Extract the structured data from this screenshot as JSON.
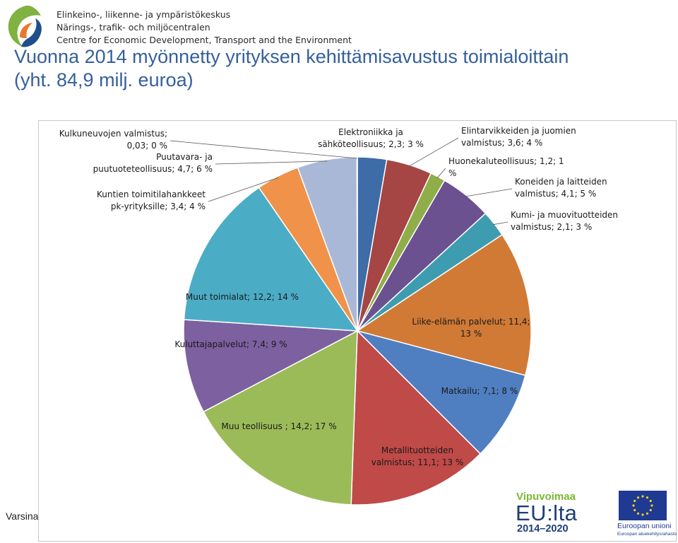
{
  "header": {
    "org_lines": [
      "Elinkeino-, liikenne- ja ympäristökeskus",
      "Närings-, trafik- och miljöcentralen",
      "Centre for Economic Development, Transport and the Environment"
    ],
    "title_line1": "Vuonna 2014 myönnetty yrityksen kehittämisavustus toimialoittain",
    "title_line2": "(yht. 84,9 milj. euroa)"
  },
  "footer": {
    "left_text": "Varsinais-Suomi",
    "vipuvoimaa": {
      "top": "Vipuvoimaa",
      "mid": "EU:lta",
      "bottom": "2014–2020"
    },
    "eu": {
      "line1": "Euroopan unioni",
      "line2": "Euroopan aluekehitysrahasto"
    }
  },
  "colors": {
    "title": "#355f9e",
    "frame": "#c8c8c8"
  },
  "chart_data": {
    "type": "pie",
    "title": "",
    "unit": "",
    "series": [
      {
        "values": [
          2.3,
          3.6,
          1.2,
          4.1,
          2.1,
          11.4,
          7.1,
          11.1,
          14.2,
          7.4,
          12.2,
          3.4,
          4.7,
          0.03
        ],
        "labels": [
          "Elektroniikka ja sähköteollisuus; 2,3; 3 %",
          "Elintarvikkeiden ja juomien valmistus; 3,6; 4 %",
          "Huonekaluteollisuus; 1,2; 1 %",
          "Koneiden ja laitteiden valmistus; 4,1; 5 %",
          "Kumi- ja muovituotteiden valmistus; 2,1; 3 %",
          "Liike-elämän palvelut; 11,4; 13 %",
          "Matkailu; 7,1; 8 %",
          "Metallituotteiden valmistus; 11,1; 13 %",
          "Muu teollisuus ; 14,2; 17 %",
          "Kuluttajapalvelut; 7,4; 9 %",
          "Muut toimialat; 12,2; 14 %",
          "Kuntien toimitilahankkeet pk-yrityksille; 3,4; 4 %",
          "Puutavara- ja puutuoteteollisuus; 4,7; 6 %",
          "Kulkuneuvojen valmistus; 0,03; 0 %"
        ],
        "colors": [
          "#3d6ca6",
          "#a54544",
          "#8fae4a",
          "#6b5190",
          "#3e9cb0",
          "#d07a36",
          "#4f7fc0",
          "#bf4a48",
          "#9bbb58",
          "#7d60a0",
          "#4bacc6",
          "#f0924a",
          "#aab8d8",
          "#d8d8d8"
        ]
      }
    ]
  }
}
